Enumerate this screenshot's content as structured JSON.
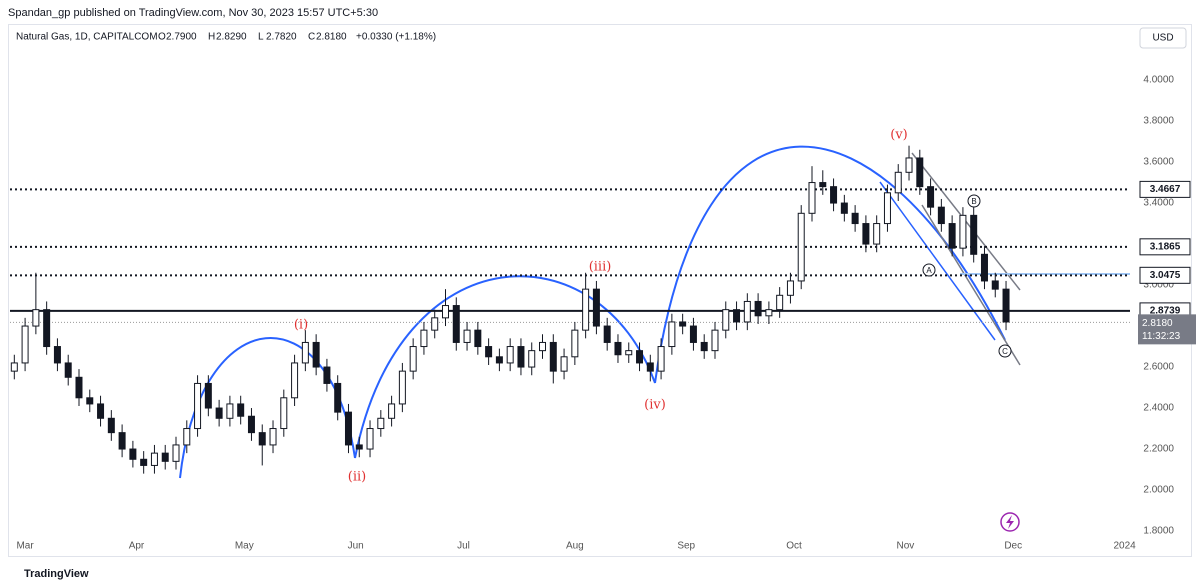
{
  "header": {
    "published": "Spandan_gp published on TradingView.com, Nov 30, 2023 15:57 UTC+5:30",
    "currency": "USD",
    "footer": "TradingView"
  },
  "chart_data": {
    "type": "candlestick",
    "symbol": "Natural Gas, 1D, CAPITALCOM",
    "legend": [
      {
        "key": "O",
        "value": "2.7900"
      },
      {
        "key": "H",
        "value": "2.8290"
      },
      {
        "key": "L",
        "value": "2.7820"
      },
      {
        "key": "C",
        "value": "2.8180"
      }
    ],
    "change": "+0.0330 (+1.18%)",
    "x": [
      -3,
      0,
      3,
      6,
      9,
      12,
      15,
      18,
      21,
      24,
      27,
      30,
      33,
      36,
      39,
      42,
      45,
      48,
      51,
      54,
      57,
      60,
      63,
      66,
      69,
      72,
      75,
      78,
      81,
      84,
      87,
      90,
      93,
      96,
      99,
      102,
      105,
      108,
      111,
      114,
      117,
      120,
      123,
      126,
      129,
      132,
      135,
      138,
      141,
      144,
      147,
      150,
      153,
      156,
      159,
      162,
      165,
      168,
      171,
      174,
      177,
      180,
      183,
      186,
      189,
      192,
      195,
      198,
      201,
      204,
      207,
      210,
      213,
      216,
      219,
      222,
      225,
      228,
      231,
      234,
      237,
      240,
      243,
      246,
      249,
      252,
      255,
      258,
      261,
      264,
      267,
      270,
      273
    ],
    "ohlc": [
      [
        2.58,
        2.66,
        2.54,
        2.62
      ],
      [
        2.62,
        2.84,
        2.58,
        2.8
      ],
      [
        2.8,
        3.06,
        2.76,
        2.88
      ],
      [
        2.88,
        2.92,
        2.66,
        2.7
      ],
      [
        2.7,
        2.74,
        2.58,
        2.62
      ],
      [
        2.62,
        2.66,
        2.51,
        2.55
      ],
      [
        2.55,
        2.59,
        2.41,
        2.45
      ],
      [
        2.45,
        2.49,
        2.38,
        2.42
      ],
      [
        2.42,
        2.46,
        2.31,
        2.35
      ],
      [
        2.35,
        2.39,
        2.24,
        2.28
      ],
      [
        2.28,
        2.32,
        2.16,
        2.2
      ],
      [
        2.2,
        2.24,
        2.11,
        2.15
      ],
      [
        2.15,
        2.19,
        2.08,
        2.12
      ],
      [
        2.12,
        2.22,
        2.08,
        2.18
      ],
      [
        2.18,
        2.22,
        2.1,
        2.14
      ],
      [
        2.14,
        2.26,
        2.1,
        2.22
      ],
      [
        2.22,
        2.34,
        2.18,
        2.3
      ],
      [
        2.3,
        2.56,
        2.26,
        2.52
      ],
      [
        2.52,
        2.56,
        2.36,
        2.4
      ],
      [
        2.4,
        2.44,
        2.31,
        2.35
      ],
      [
        2.35,
        2.46,
        2.31,
        2.42
      ],
      [
        2.42,
        2.46,
        2.32,
        2.36
      ],
      [
        2.36,
        2.4,
        2.24,
        2.28
      ],
      [
        2.28,
        2.32,
        2.12,
        2.22
      ],
      [
        2.22,
        2.34,
        2.18,
        2.3
      ],
      [
        2.3,
        2.49,
        2.26,
        2.45
      ],
      [
        2.45,
        2.66,
        2.41,
        2.62
      ],
      [
        2.62,
        2.78,
        2.58,
        2.72
      ],
      [
        2.72,
        2.76,
        2.56,
        2.6
      ],
      [
        2.6,
        2.64,
        2.48,
        2.52
      ],
      [
        2.52,
        2.56,
        2.34,
        2.38
      ],
      [
        2.38,
        2.42,
        2.18,
        2.22
      ],
      [
        2.22,
        2.26,
        2.16,
        2.2
      ],
      [
        2.2,
        2.34,
        2.16,
        2.3
      ],
      [
        2.3,
        2.39,
        2.26,
        2.35
      ],
      [
        2.35,
        2.46,
        2.31,
        2.42
      ],
      [
        2.42,
        2.62,
        2.38,
        2.58
      ],
      [
        2.58,
        2.74,
        2.54,
        2.7
      ],
      [
        2.7,
        2.82,
        2.66,
        2.78
      ],
      [
        2.78,
        2.88,
        2.74,
        2.84
      ],
      [
        2.84,
        2.98,
        2.8,
        2.9
      ],
      [
        2.9,
        2.94,
        2.68,
        2.72
      ],
      [
        2.72,
        2.82,
        2.68,
        2.78
      ],
      [
        2.78,
        2.82,
        2.66,
        2.7
      ],
      [
        2.7,
        2.74,
        2.61,
        2.65
      ],
      [
        2.65,
        2.69,
        2.58,
        2.62
      ],
      [
        2.62,
        2.74,
        2.58,
        2.7
      ],
      [
        2.7,
        2.74,
        2.56,
        2.6
      ],
      [
        2.6,
        2.72,
        2.56,
        2.68
      ],
      [
        2.68,
        2.76,
        2.64,
        2.72
      ],
      [
        2.72,
        2.76,
        2.52,
        2.58
      ],
      [
        2.58,
        2.69,
        2.54,
        2.65
      ],
      [
        2.65,
        2.82,
        2.61,
        2.78
      ],
      [
        2.78,
        3.06,
        2.74,
        2.98
      ],
      [
        2.98,
        3.02,
        2.76,
        2.8
      ],
      [
        2.8,
        2.84,
        2.68,
        2.72
      ],
      [
        2.72,
        2.76,
        2.62,
        2.66
      ],
      [
        2.66,
        2.72,
        2.62,
        2.68
      ],
      [
        2.68,
        2.72,
        2.58,
        2.62
      ],
      [
        2.62,
        2.66,
        2.53,
        2.58
      ],
      [
        2.58,
        2.74,
        2.54,
        2.7
      ],
      [
        2.7,
        2.86,
        2.66,
        2.82
      ],
      [
        2.82,
        2.86,
        2.76,
        2.8
      ],
      [
        2.8,
        2.84,
        2.68,
        2.72
      ],
      [
        2.72,
        2.76,
        2.64,
        2.68
      ],
      [
        2.68,
        2.82,
        2.64,
        2.78
      ],
      [
        2.78,
        2.92,
        2.74,
        2.88
      ],
      [
        2.88,
        2.92,
        2.78,
        2.82
      ],
      [
        2.82,
        2.96,
        2.78,
        2.92
      ],
      [
        2.92,
        2.96,
        2.81,
        2.85
      ],
      [
        2.85,
        2.92,
        2.81,
        2.88
      ],
      [
        2.88,
        2.99,
        2.84,
        2.95
      ],
      [
        2.95,
        3.06,
        2.91,
        3.02
      ],
      [
        3.02,
        3.39,
        2.98,
        3.35
      ],
      [
        3.35,
        3.58,
        3.31,
        3.5
      ],
      [
        3.5,
        3.56,
        3.44,
        3.48
      ],
      [
        3.48,
        3.52,
        3.36,
        3.4
      ],
      [
        3.4,
        3.44,
        3.31,
        3.35
      ],
      [
        3.35,
        3.39,
        3.26,
        3.3
      ],
      [
        3.3,
        3.34,
        3.16,
        3.2
      ],
      [
        3.2,
        3.34,
        3.16,
        3.3
      ],
      [
        3.3,
        3.49,
        3.26,
        3.45
      ],
      [
        3.45,
        3.59,
        3.41,
        3.55
      ],
      [
        3.55,
        3.68,
        3.51,
        3.62
      ],
      [
        3.62,
        3.66,
        3.44,
        3.48
      ],
      [
        3.48,
        3.52,
        3.34,
        3.38
      ],
      [
        3.38,
        3.42,
        3.26,
        3.3
      ],
      [
        3.3,
        3.34,
        3.14,
        3.18
      ],
      [
        3.18,
        3.38,
        3.14,
        3.34
      ],
      [
        3.34,
        3.38,
        3.11,
        3.15
      ],
      [
        3.15,
        3.19,
        2.98,
        3.02
      ],
      [
        3.02,
        3.06,
        2.94,
        2.98
      ],
      [
        2.98,
        3.02,
        2.78,
        2.82
      ]
    ],
    "up_color": "#ffffff",
    "down_color": "#131722",
    "border_color": "#131722",
    "xlim": [
      -4.2,
      307.5
    ],
    "xticks": [
      {
        "value": 0,
        "label": "Mar"
      },
      {
        "value": 31,
        "label": "Apr"
      },
      {
        "value": 61,
        "label": "May"
      },
      {
        "value": 92,
        "label": "Jun"
      },
      {
        "value": 122,
        "label": "Jul"
      },
      {
        "value": 153,
        "label": "Aug"
      },
      {
        "value": 184,
        "label": "Sep"
      },
      {
        "value": 214,
        "label": "Oct"
      },
      {
        "value": 245,
        "label": "Nov"
      },
      {
        "value": 275,
        "label": "Dec"
      },
      {
        "value": 306,
        "label": "2024"
      }
    ],
    "ylim": [
      1.766,
      4.254
    ],
    "yticks": [
      {
        "value": 1.8,
        "label": "1.8000"
      },
      {
        "value": 2.0,
        "label": "2.0000"
      },
      {
        "value": 2.2,
        "label": "2.2000"
      },
      {
        "value": 2.4,
        "label": "2.4000"
      },
      {
        "value": 2.6,
        "label": "2.6000"
      },
      {
        "value": 2.8,
        "label": "2.8000"
      },
      {
        "value": 3.0,
        "label": "3.0000"
      },
      {
        "value": 3.2,
        "label": "3.2000"
      },
      {
        "value": 3.4,
        "label": "3.4000"
      },
      {
        "value": 3.6,
        "label": "3.6000"
      },
      {
        "value": 3.8,
        "label": "3.8000"
      },
      {
        "value": 4.0,
        "label": "4.0000"
      }
    ],
    "levels": [
      {
        "value": 3.4667,
        "style": "dotted"
      },
      {
        "value": 3.1865,
        "style": "dotted"
      },
      {
        "value": 3.0475,
        "style": "dotted"
      },
      {
        "value": 2.8739,
        "style": "solid"
      }
    ],
    "last_price": {
      "value": 2.818,
      "label": "2.8180"
    },
    "countdown": "11:32:23",
    "waves": [
      "(i)",
      "(ii)",
      "(iii)",
      "(iv)",
      "(v)"
    ],
    "corrective": [
      "A",
      "B",
      "C"
    ]
  }
}
